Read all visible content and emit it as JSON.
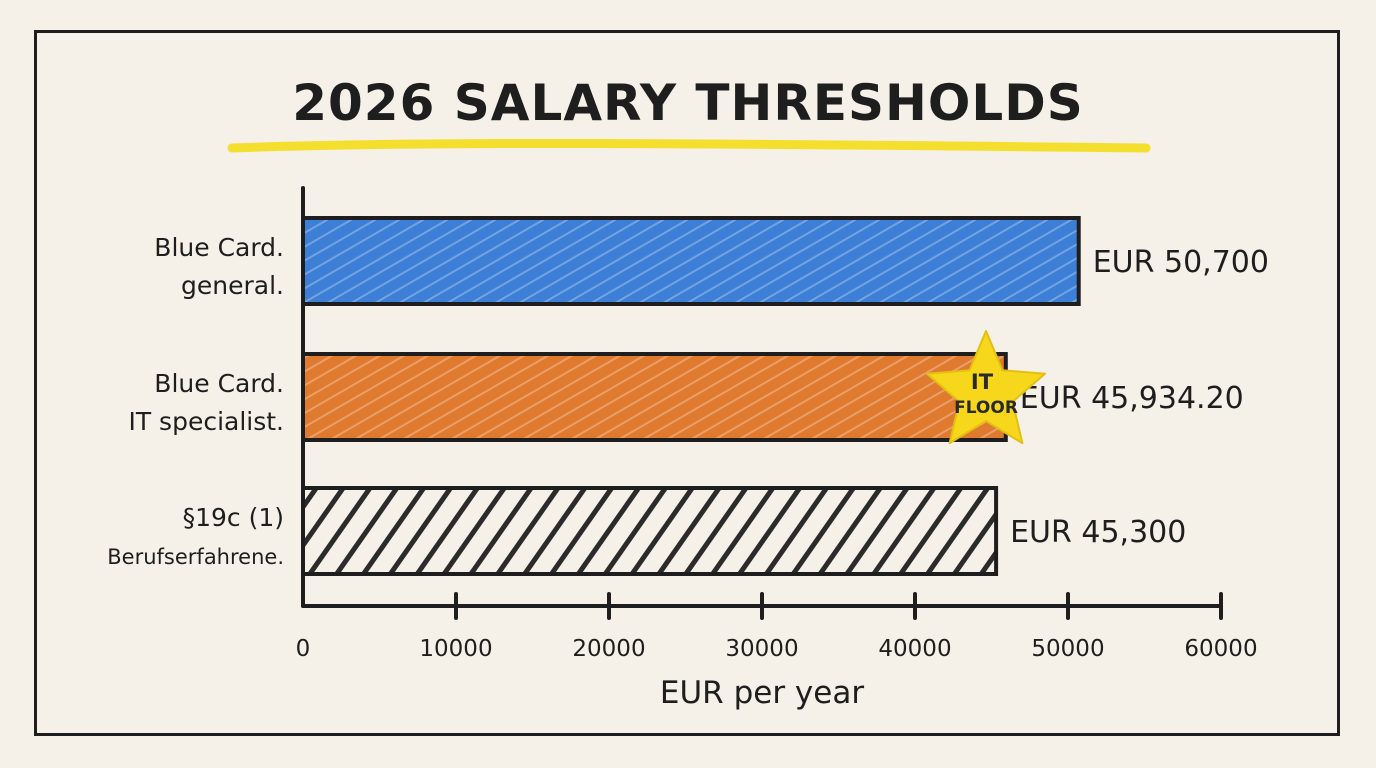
{
  "chart_data": {
    "type": "bar",
    "orientation": "horizontal",
    "title": "2026 SALARY THRESHOLDS",
    "xlabel": "EUR per year",
    "ylabel": "",
    "xlim": [
      0,
      60000
    ],
    "xticks": [
      0,
      10000,
      20000,
      30000,
      40000,
      50000,
      60000
    ],
    "grid": false,
    "categories": [
      {
        "lines": [
          "Blue Card.",
          "general."
        ]
      },
      {
        "lines": [
          "Blue Card.",
          "IT specialist."
        ]
      },
      {
        "lines": [
          "§19c (1)",
          "Berufserfahrene."
        ]
      }
    ],
    "values": [
      50700,
      45934.2,
      45300
    ],
    "value_labels": [
      "EUR 50,700",
      "EUR 45,934.20",
      "EUR 45,300"
    ],
    "bar_colors": [
      "#3d7fd6",
      "#e07a2f",
      "#2b2b2b"
    ],
    "bar_styles": [
      "solid",
      "solid",
      "hatched"
    ],
    "annotations": [
      {
        "type": "star",
        "category_index": 1,
        "lines": [
          "IT",
          "FLOOR"
        ],
        "color": "#f7d71c"
      }
    ],
    "title_underline_color": "#f5df2e"
  }
}
